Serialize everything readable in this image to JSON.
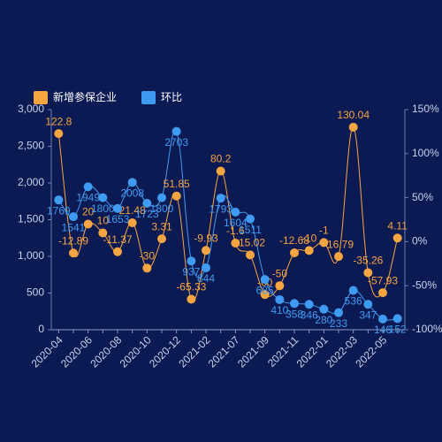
{
  "chart_data": {
    "type": "line",
    "categories": [
      "2020-04",
      null,
      "2020-06",
      null,
      "2020-08",
      null,
      "2020-10",
      null,
      "2020-12",
      null,
      "2021-02",
      null,
      "2021-07",
      null,
      "2021-09",
      null,
      "2021-11",
      null,
      "2022-01",
      null,
      "2022-03",
      null,
      "2022-05",
      null
    ],
    "series": [
      {
        "name": "新增参保企业",
        "color": "#f7a541",
        "axis": "y2",
        "values": [
          122.8,
          -12.89,
          20,
          10,
          -11.37,
          21.48,
          -30,
          3.31,
          51.85,
          -65.33,
          -9.93,
          80.2,
          -1.6,
          -15.02,
          -60,
          -50,
          -12.68,
          -10,
          -1,
          -16.79,
          130.04,
          -35.26,
          -57.93,
          4.11
        ]
      },
      {
        "name": "环比",
        "color": "#3f9bf2",
        "axis": "y",
        "values": [
          1769,
          1541,
          1949,
          1800,
          1653,
          2008,
          1723,
          1800,
          2703,
          937,
          844,
          1793,
          1604,
          1511,
          685,
          410,
          358,
          346,
          280,
          233,
          536,
          347,
          146,
          152
        ]
      }
    ],
    "ylim": [
      0,
      3000
    ],
    "yticks": [
      0,
      {
        "value": 500,
        "label": "500"
      },
      {
        "value": 1000,
        "label": "1,000"
      },
      {
        "value": 1500,
        "label": "1,500"
      },
      {
        "value": 2000,
        "label": "2,000"
      },
      {
        "value": 2500,
        "label": "2,500"
      },
      {
        "value": 3000,
        "label": "3,000"
      }
    ],
    "y2lim": [
      -100,
      150
    ],
    "y2ticks": [
      {
        "value": -100,
        "label": "-100%"
      },
      {
        "value": -50,
        "label": "-50%"
      },
      {
        "value": 0,
        "label": "0%"
      },
      {
        "value": 50,
        "label": "50%"
      },
      {
        "value": 100,
        "label": "100%"
      },
      {
        "value": 150,
        "label": "150%"
      }
    ],
    "legend": "top-left"
  }
}
